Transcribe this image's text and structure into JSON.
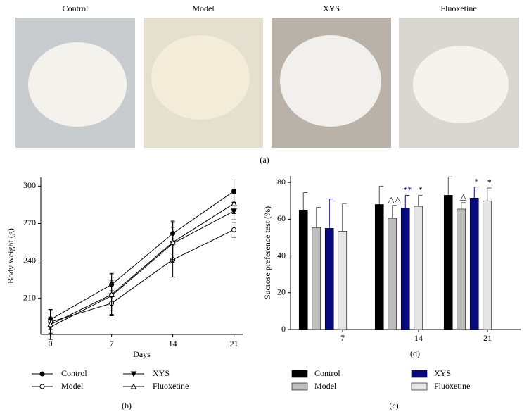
{
  "figure_a": {
    "labels": [
      "Control",
      "Model",
      "XYS",
      "Fluoxetine"
    ],
    "caption": "(a)"
  },
  "chart_data": [
    {
      "type": "line",
      "caption": "(b)",
      "x_label": "Days",
      "y_label": "Body weight (g)",
      "x": [
        0,
        7,
        14,
        21
      ],
      "xlim": [
        -1.1,
        22
      ],
      "xticks": [
        0,
        7,
        14,
        21
      ],
      "ylim": [
        181,
        307
      ],
      "yticks": [
        210,
        240,
        270,
        300
      ],
      "series": [
        {
          "name": "Control",
          "color": "#000000",
          "marker": "circle",
          "filled": true,
          "values": [
            193,
            221,
            262,
            296
          ],
          "errors": [
            8,
            9,
            10,
            9
          ]
        },
        {
          "name": "Model",
          "color": "#000000",
          "marker": "circle",
          "filled": false,
          "values": [
            191,
            206,
            241,
            265
          ],
          "errors": [
            9,
            10,
            14,
            6
          ]
        },
        {
          "name": "XYS",
          "color": "#000000",
          "marker": "triangle-down",
          "filled": true,
          "values": [
            187,
            212,
            254,
            280
          ],
          "errors": [
            8,
            12,
            13,
            7
          ]
        },
        {
          "name": "Fluoxetine",
          "color": "#000000",
          "marker": "triangle-up",
          "filled": false,
          "values": [
            189,
            213,
            255,
            286
          ],
          "errors": [
            12,
            16,
            16,
            8
          ]
        }
      ]
    },
    {
      "type": "bar",
      "caption": "(c)",
      "x_label": "(d)",
      "y_label": "Sucrose preference test (%)",
      "categories": [
        "7",
        "14",
        "21"
      ],
      "ylim": [
        0,
        83.5
      ],
      "yticks": [
        0,
        20,
        40,
        60,
        80
      ],
      "series": [
        {
          "name": "Control",
          "color": "#000000",
          "values": [
            65,
            68,
            73
          ],
          "errors": [
            9.5,
            10,
            10
          ],
          "significance": [
            null,
            null,
            null
          ]
        },
        {
          "name": "Model",
          "color": "#bdbdbd",
          "values": [
            55.5,
            60.5,
            65.5
          ],
          "errors": [
            11,
            7,
            3.5
          ],
          "significance": [
            null,
            "△△",
            "△"
          ]
        },
        {
          "name": "XYS",
          "color": "#0a0a80",
          "values": [
            55,
            66,
            71.5
          ],
          "errors": [
            16,
            7,
            6
          ],
          "significance": [
            null,
            "**",
            "*"
          ]
        },
        {
          "name": "Fluoxetine",
          "color": "#e6e6e6",
          "values": [
            53.5,
            67,
            70
          ],
          "errors": [
            15,
            6,
            7
          ],
          "significance": [
            null,
            "*",
            "*"
          ]
        }
      ]
    }
  ]
}
